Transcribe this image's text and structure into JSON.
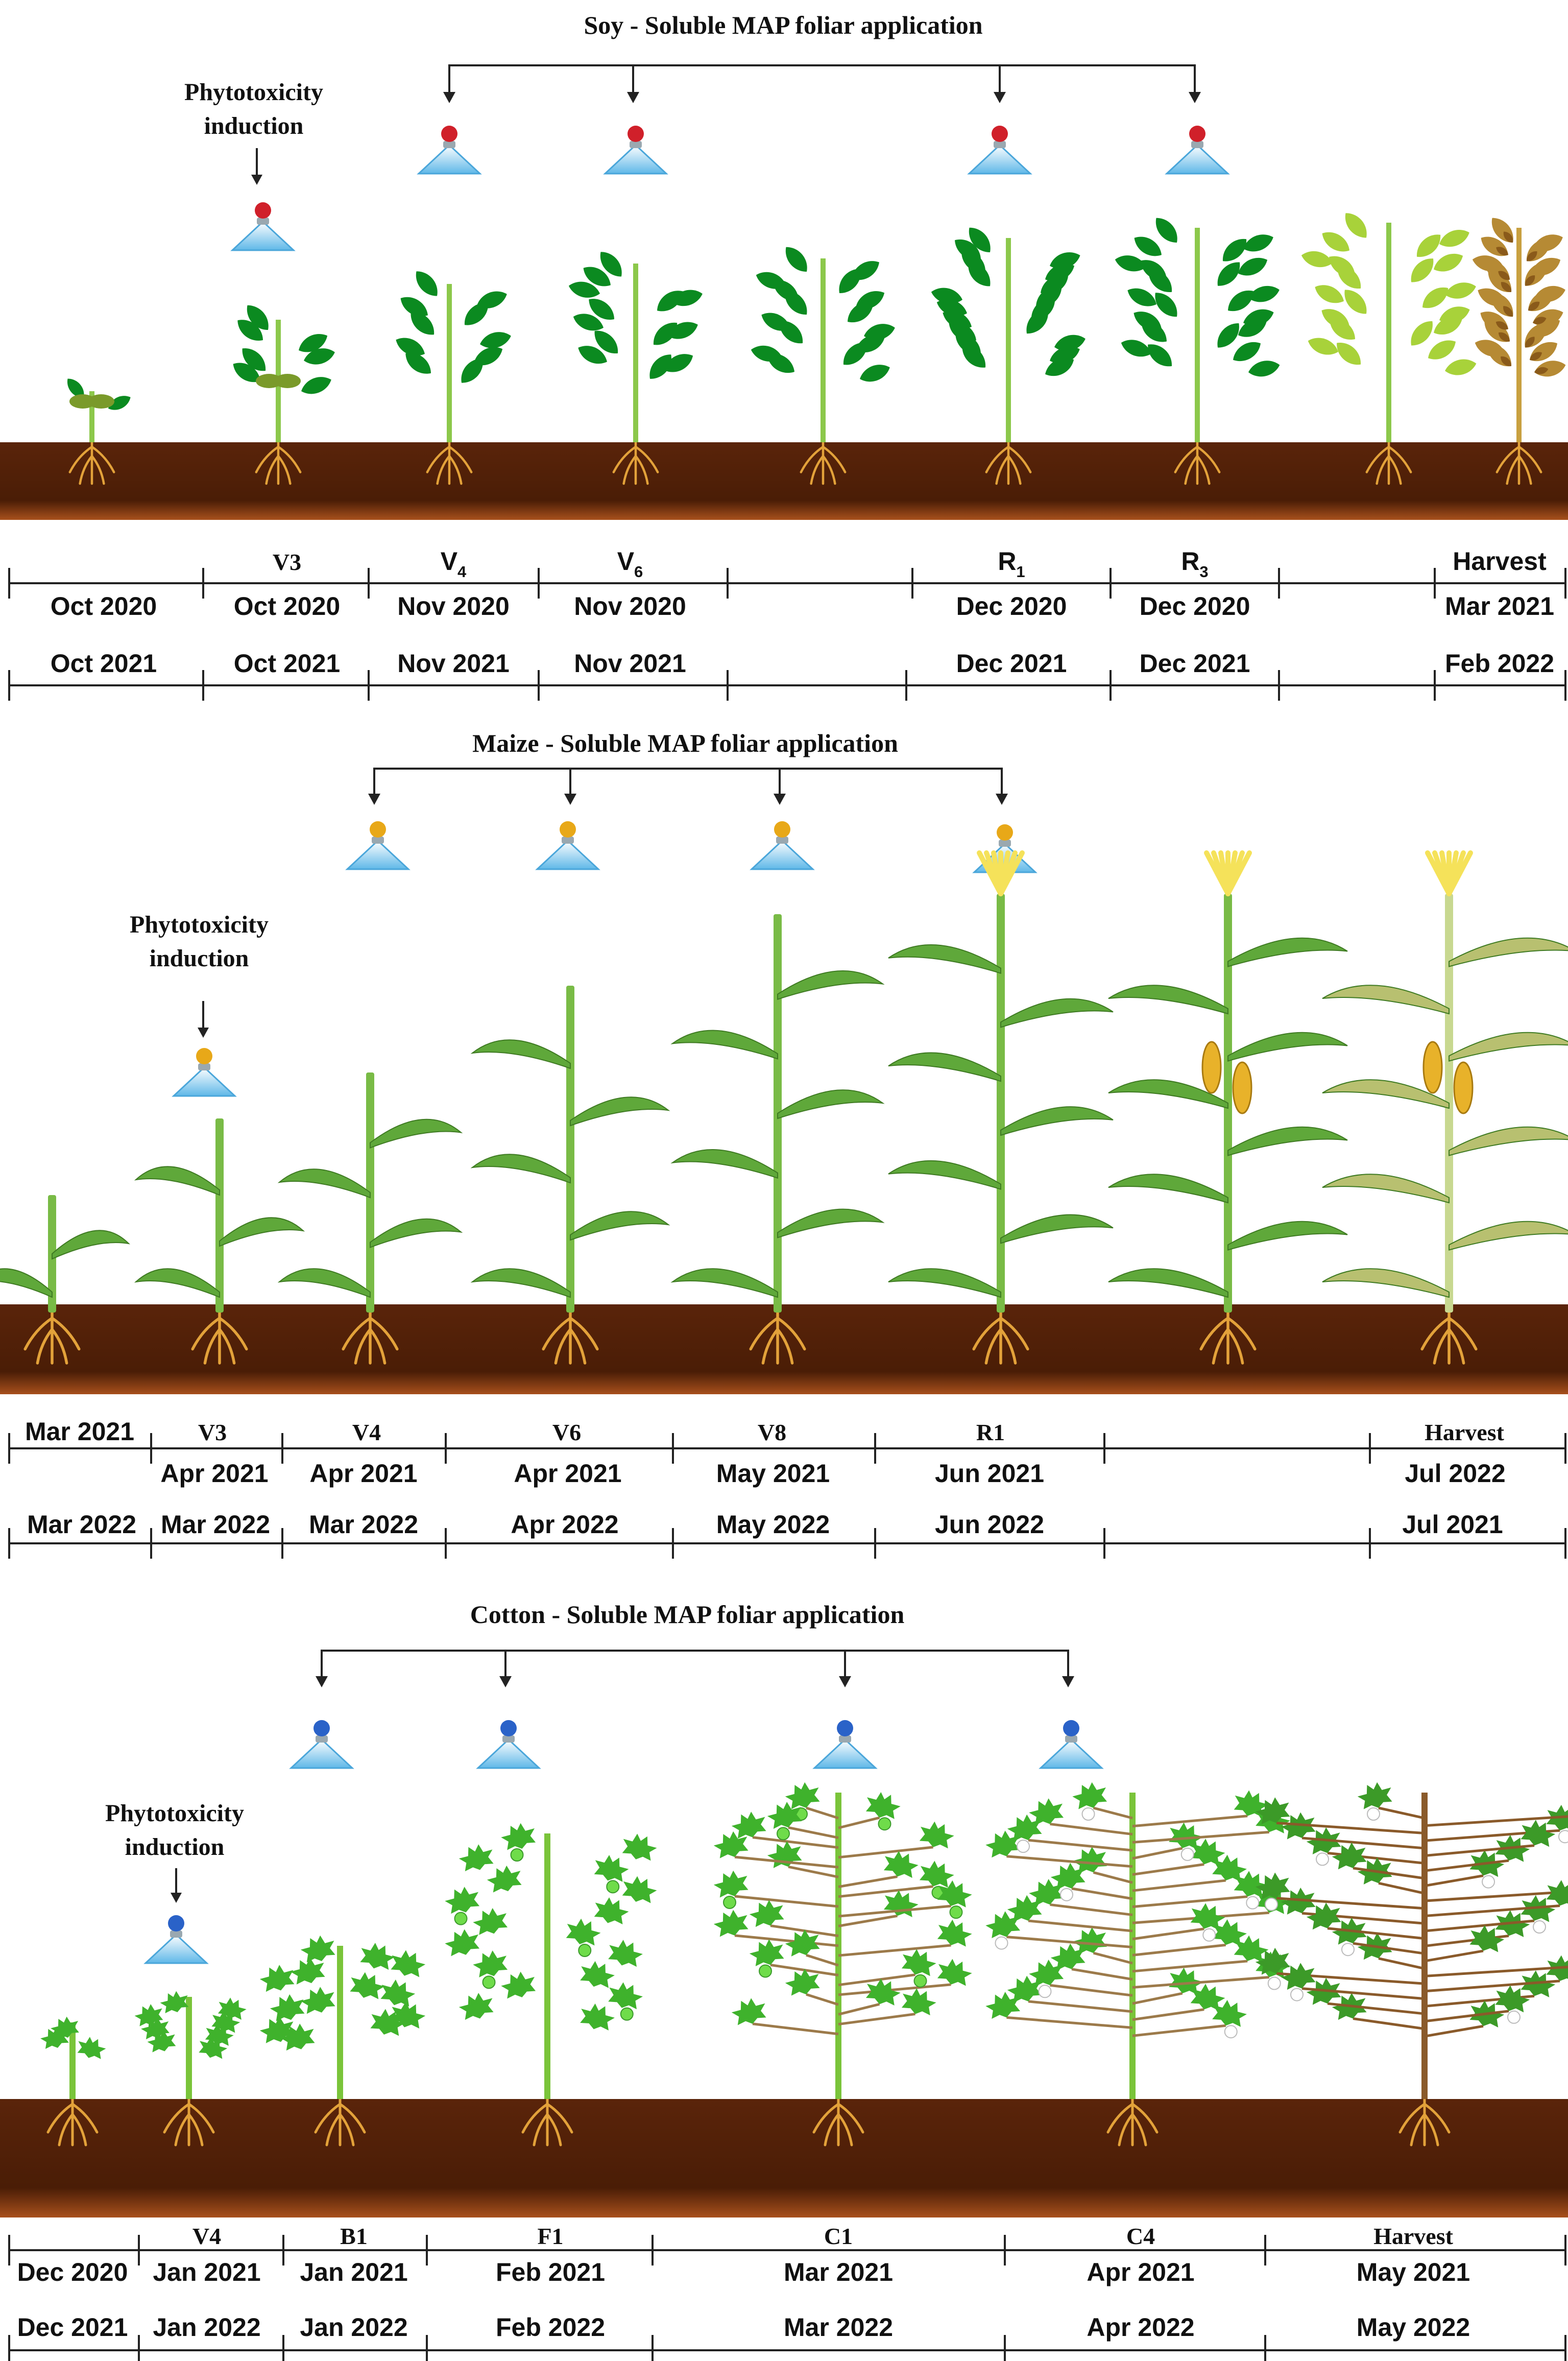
{
  "palette": {
    "soil_dark": "#4a1d06",
    "soil_light": "#7a3410",
    "leaf_dark": "#0a7a1a",
    "leaf_soy": "#0b8a20",
    "leaf_maize": "#5fa83a",
    "leaf_cotton": "#3fb22c",
    "stem": "#8cc84b",
    "root": "#e3a23a",
    "nozzle_cone": "#7fc8ec",
    "drop_soy": "#d0202a",
    "drop_maize": "#e8a818",
    "drop_cotton": "#2a62c8",
    "line": "#222222",
    "senesce": "#c8a040"
  },
  "panels": [
    {
      "id": "soy",
      "title": "Soy - Soluble MAP foliar  application",
      "phyto_label_1": "Phytotoxicity",
      "phyto_label_2": "induction",
      "drop_icon": "red-drop-spray-nozzle-icon",
      "stages": [
        {
          "label": "",
          "main": "",
          "sub": "",
          "date1": "Oct 2020",
          "date2": "Oct 2021"
        },
        {
          "label": "V3",
          "main": "V3",
          "sub": "",
          "date1": "Oct 2020",
          "date2": "Oct 2021"
        },
        {
          "label": "V4",
          "main": "V",
          "sub": "4",
          "date1": "Nov 2020",
          "date2": "Nov 2021"
        },
        {
          "label": "V6",
          "main": "V",
          "sub": "6",
          "date1": "Nov 2020",
          "date2": "Nov 2021"
        },
        {
          "label": "",
          "main": "",
          "sub": "",
          "date1": "",
          "date2": ""
        },
        {
          "label": "R1",
          "main": "R",
          "sub": "1",
          "date1": "Dec 2020",
          "date2": "Dec 2021"
        },
        {
          "label": "R3",
          "main": "R",
          "sub": "3",
          "date1": "Dec 2020",
          "date2": "Dec 2021"
        },
        {
          "label": "",
          "main": "",
          "sub": "",
          "date1": "",
          "date2": ""
        },
        {
          "label": "Harvest",
          "main": "Harvest",
          "sub": "",
          "date1": "Mar 2021",
          "date2": "Feb 2022"
        }
      ]
    },
    {
      "id": "maize",
      "title": "Maize - Soluble MAP foliar application",
      "phyto_label_1": "Phytotoxicity",
      "phyto_label_2": "induction",
      "drop_icon": "yellow-drop-spray-nozzle-icon",
      "stages": [
        {
          "label": "",
          "main": "",
          "sub": "",
          "date1": "Mar 2021",
          "date2": "Mar 2022"
        },
        {
          "label": "V3",
          "main": "V3",
          "sub": "",
          "date1": "Apr 2021",
          "date2": "Mar 2022"
        },
        {
          "label": "V4",
          "main": "V4",
          "sub": "",
          "date1": "Apr 2021",
          "date2": "Mar 2022"
        },
        {
          "label": "V6",
          "main": "V6",
          "sub": "",
          "date1": "Apr 2021",
          "date2": "Apr 2022"
        },
        {
          "label": "V8",
          "main": "V8",
          "sub": "",
          "date1": "May 2021",
          "date2": "May 2022"
        },
        {
          "label": "R1",
          "main": "R1",
          "sub": "",
          "date1": "Jun 2021",
          "date2": "Jun 2022"
        },
        {
          "label": "",
          "main": "",
          "sub": "",
          "date1": "",
          "date2": ""
        },
        {
          "label": "Harvest",
          "main": "Harvest",
          "sub": "",
          "date1": "Jul 2022",
          "date2": "Jul 2021"
        }
      ]
    },
    {
      "id": "cotton",
      "title": "Cotton - Soluble MAP foliar  application",
      "phyto_label_1": "Phytotoxicity",
      "phyto_label_2": "induction",
      "drop_icon": "blue-drop-spray-nozzle-icon",
      "stages": [
        {
          "label": "",
          "main": "",
          "sub": "",
          "date1": "Dec 2020",
          "date2": "Dec 2021"
        },
        {
          "label": "V4",
          "main": "V4",
          "sub": "",
          "date1": "Jan 2021",
          "date2": "Jan 2022"
        },
        {
          "label": "B1",
          "main": "B1",
          "sub": "",
          "date1": "Jan 2021",
          "date2": "Jan 2022"
        },
        {
          "label": "F1",
          "main": "F1",
          "sub": "",
          "date1": "Feb 2021",
          "date2": "Feb 2022"
        },
        {
          "label": "C1",
          "main": "C1",
          "sub": "",
          "date1": "Mar 2021",
          "date2": "Mar 2022"
        },
        {
          "label": "C4",
          "main": "C4",
          "sub": "",
          "date1": "Apr 2021",
          "date2": "Apr 2022"
        },
        {
          "label": "Harvest",
          "main": "Harvest",
          "sub": "",
          "date1": "May 2021",
          "date2": "May 2022"
        }
      ]
    }
  ]
}
